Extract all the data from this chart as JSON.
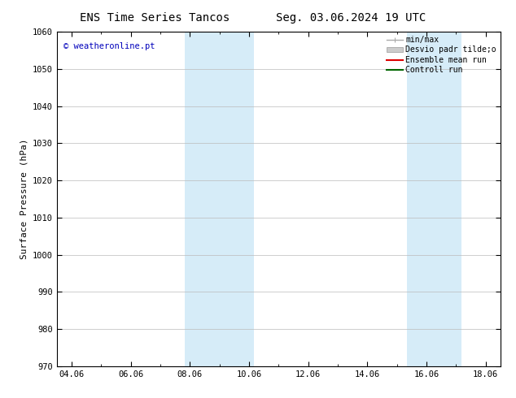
{
  "title_left": "ENS Time Series Tancos",
  "title_right": "Seg. 03.06.2024 19 UTC",
  "ylabel": "Surface Pressure (hPa)",
  "ylim": [
    970,
    1060
  ],
  "yticks": [
    970,
    980,
    990,
    1000,
    1010,
    1020,
    1030,
    1040,
    1050,
    1060
  ],
  "xtick_labels": [
    "04.06",
    "06.06",
    "08.06",
    "10.06",
    "12.06",
    "14.06",
    "16.06",
    "18.06"
  ],
  "xtick_positions": [
    0,
    2,
    4,
    6,
    8,
    10,
    12,
    14
  ],
  "xlim": [
    -0.5,
    14.5
  ],
  "shade_bands": [
    {
      "xmin": 3.83,
      "xmax": 4.5,
      "color": "#d6ecf8"
    },
    {
      "xmin": 4.5,
      "xmax": 6.17,
      "color": "#d6ecf8"
    },
    {
      "xmin": 11.33,
      "xmax": 12.0,
      "color": "#d6ecf8"
    },
    {
      "xmin": 12.0,
      "xmax": 13.17,
      "color": "#d6ecf8"
    }
  ],
  "watermark": "© weatheronline.pt",
  "watermark_color": "#0000bb",
  "legend_items": [
    {
      "label": "min/max",
      "color": "#aaaaaa",
      "lw": 1.0,
      "type": "line_with_caps"
    },
    {
      "label": "Desvio padr tilde;o",
      "color": "#cccccc",
      "lw": 6,
      "type": "patch"
    },
    {
      "label": "Ensemble mean run",
      "color": "#dd0000",
      "lw": 1.5,
      "type": "line"
    },
    {
      "label": "Controll run",
      "color": "#006600",
      "lw": 1.5,
      "type": "line"
    }
  ],
  "bg_color": "#ffffff",
  "grid_color": "#bbbbbb",
  "title_fontsize": 10,
  "tick_fontsize": 7.5,
  "ylabel_fontsize": 8,
  "legend_fontsize": 7
}
